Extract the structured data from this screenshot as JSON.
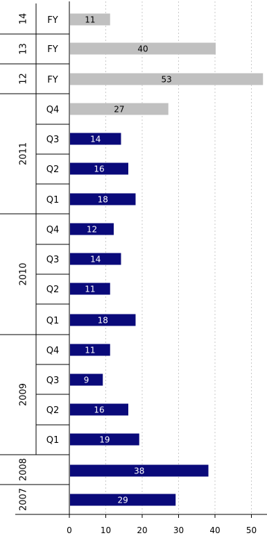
{
  "chart_data": {
    "type": "bar",
    "orientation": "horizontal",
    "title": "",
    "xlabel": "",
    "ylabel": "",
    "xlim": [
      0,
      53
    ],
    "xticks": [
      "0",
      "10",
      "20",
      "30",
      "40",
      "50"
    ],
    "grid": "vertical dotted",
    "colors": {
      "actual": "#0a0a7a",
      "forecast": "#c0c0c0",
      "label_on_dark": "#ffffff",
      "label_on_light": "#000000"
    },
    "rows": [
      {
        "group": "14",
        "period": "FY",
        "value": 11,
        "kind": "forecast"
      },
      {
        "group": "13",
        "period": "FY",
        "value": 40,
        "kind": "forecast"
      },
      {
        "group": "12",
        "period": "FY",
        "value": 53,
        "kind": "forecast"
      },
      {
        "group": "2011",
        "period": "Q4",
        "value": 27,
        "kind": "forecast"
      },
      {
        "group": "2011",
        "period": "Q3",
        "value": 14,
        "kind": "actual"
      },
      {
        "group": "2011",
        "period": "Q2",
        "value": 16,
        "kind": "actual"
      },
      {
        "group": "2011",
        "period": "Q1",
        "value": 18,
        "kind": "actual"
      },
      {
        "group": "2010",
        "period": "Q4",
        "value": 12,
        "kind": "actual"
      },
      {
        "group": "2010",
        "period": "Q3",
        "value": 14,
        "kind": "actual"
      },
      {
        "group": "2010",
        "period": "Q2",
        "value": 11,
        "kind": "actual"
      },
      {
        "group": "2010",
        "period": "Q1",
        "value": 18,
        "kind": "actual"
      },
      {
        "group": "2009",
        "period": "Q4",
        "value": 11,
        "kind": "actual"
      },
      {
        "group": "2009",
        "period": "Q3",
        "value": 9,
        "kind": "actual"
      },
      {
        "group": "2009",
        "period": "Q2",
        "value": 16,
        "kind": "actual"
      },
      {
        "group": "2009",
        "period": "Q1",
        "value": 19,
        "kind": "actual"
      },
      {
        "group": "2008",
        "period": "",
        "value": 38,
        "kind": "actual"
      },
      {
        "group": "2007",
        "period": "",
        "value": 29,
        "kind": "actual"
      }
    ]
  }
}
